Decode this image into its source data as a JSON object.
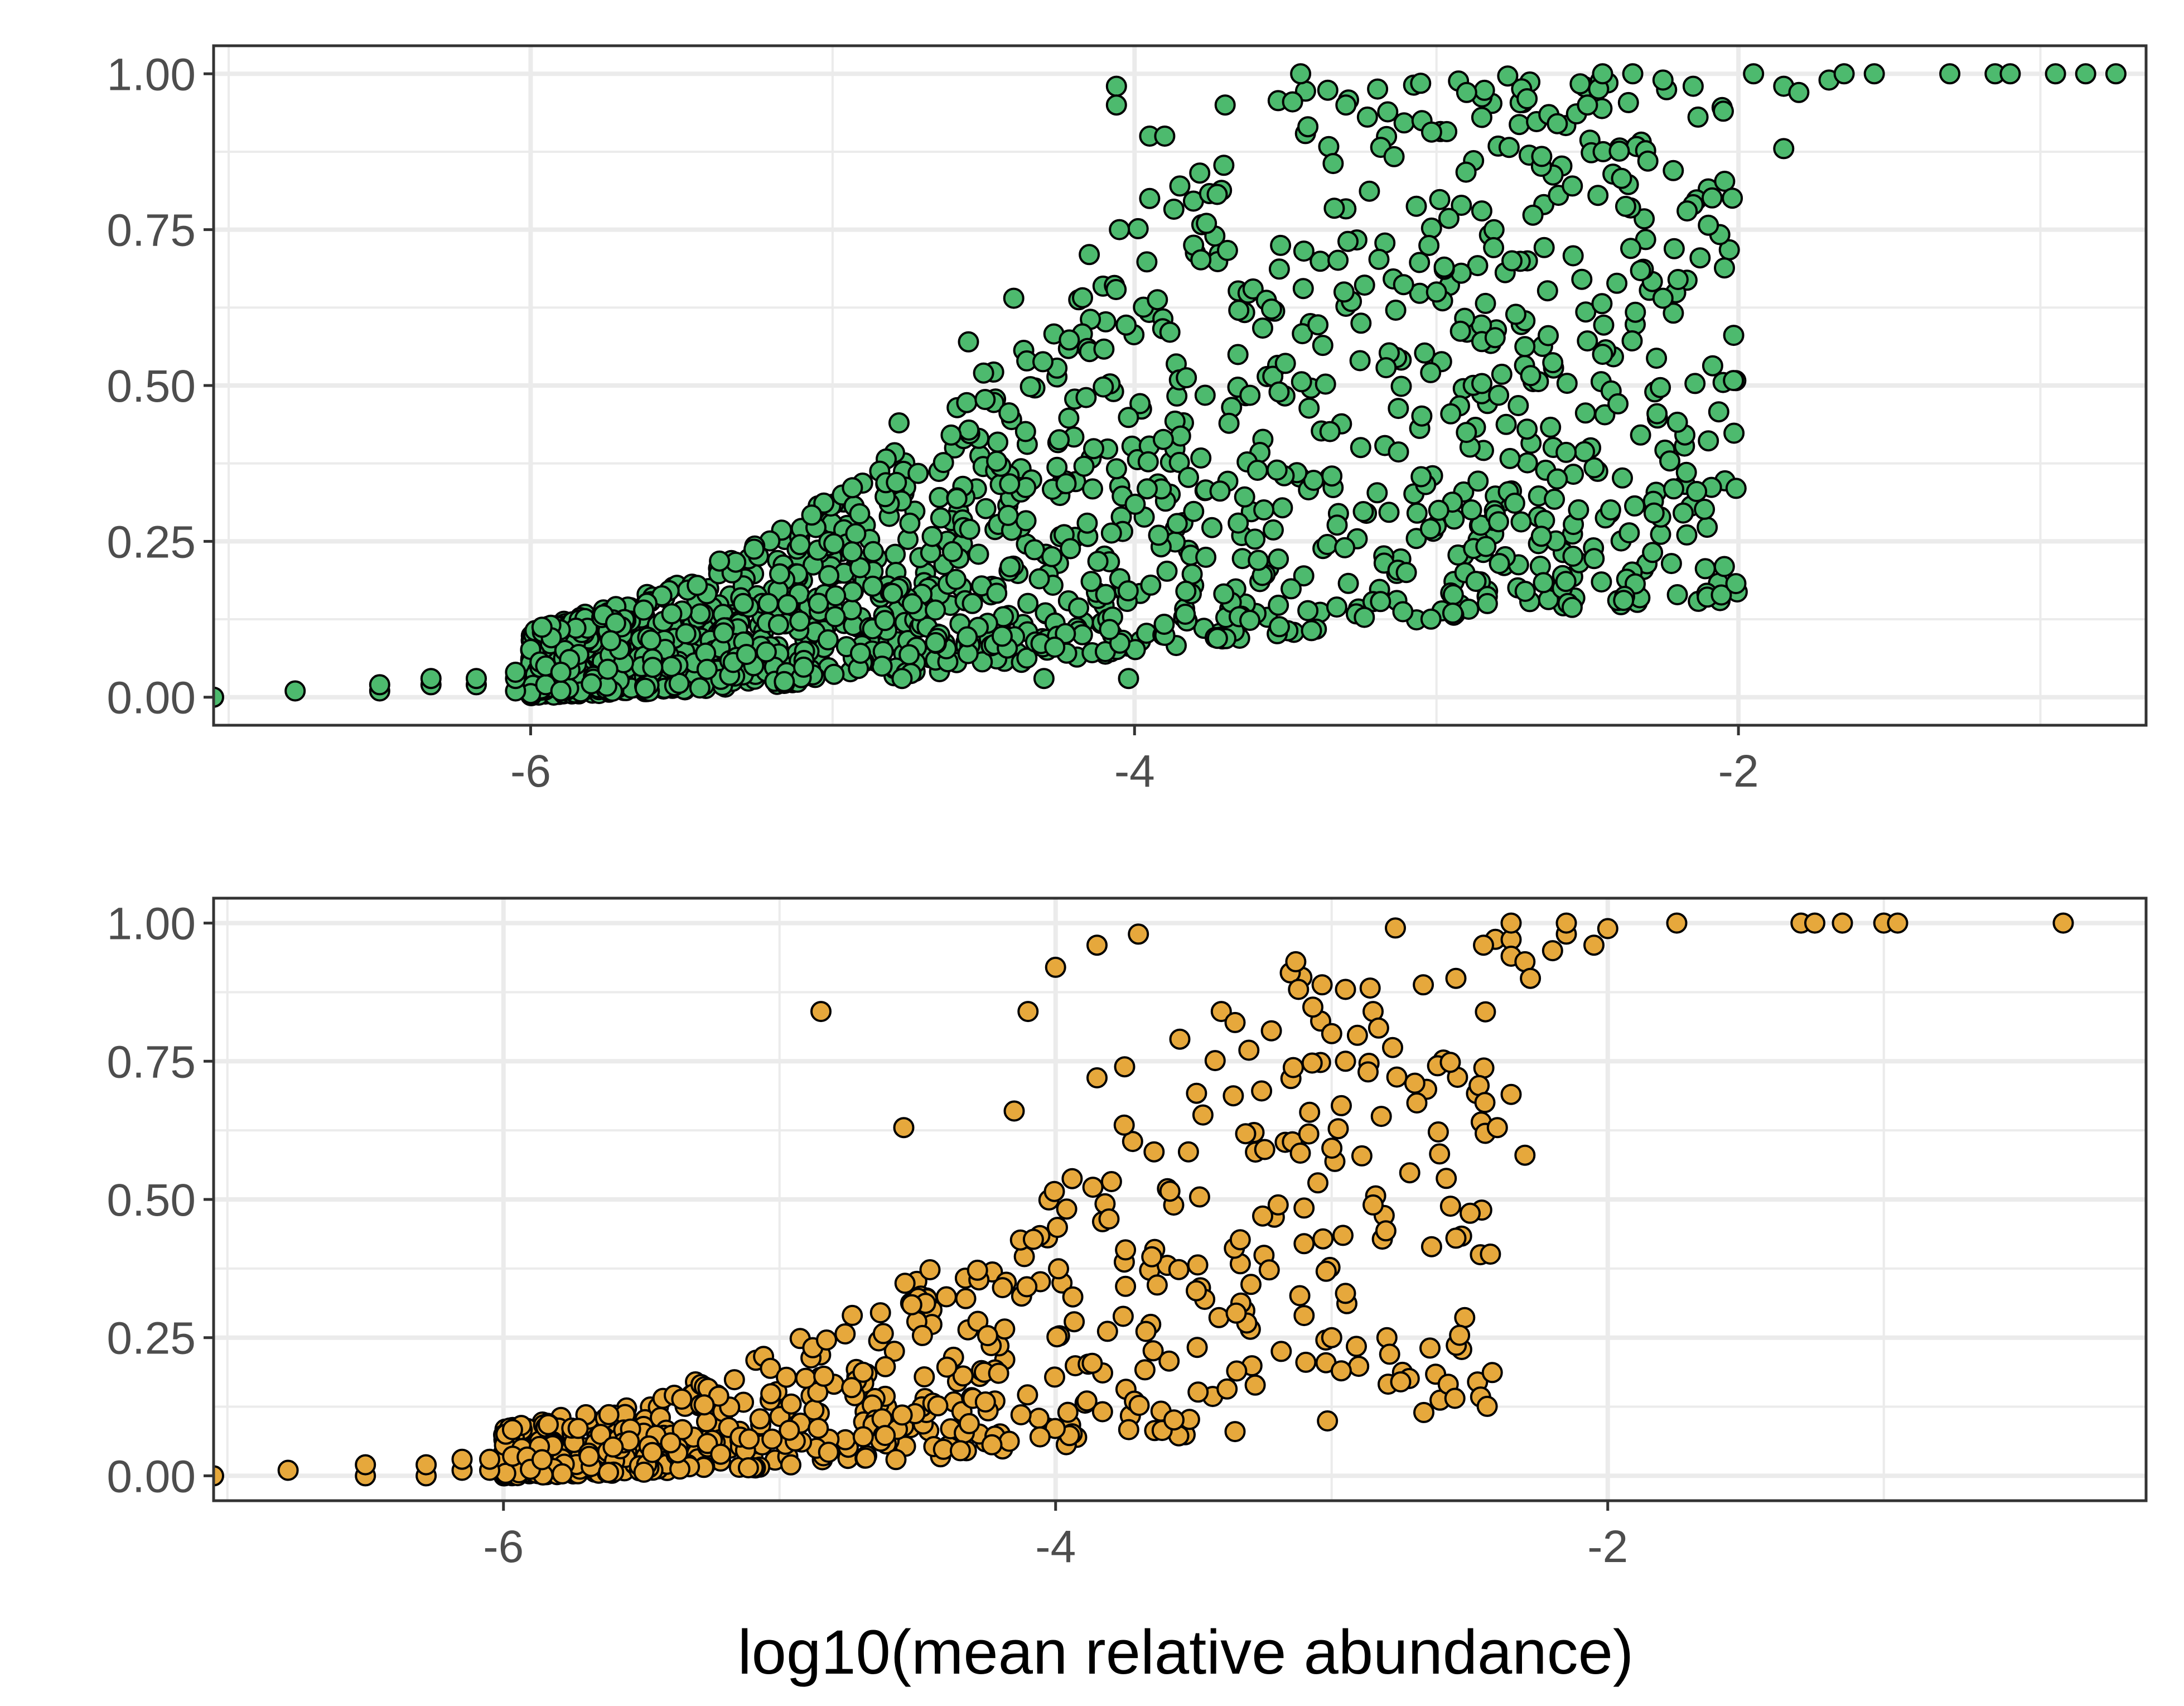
{
  "chart_data": [
    {
      "type": "scatter",
      "panel": "top",
      "marker_color": "#4dba6e",
      "xlabel": "",
      "ylabel": "",
      "xlim": [
        -7.05,
        -0.65
      ],
      "ylim": [
        -0.045,
        1.045
      ],
      "x_ticks": [
        -6,
        -4,
        -2
      ],
      "x_tick_labels": [
        "-6",
        "-4",
        "-2"
      ],
      "y_ticks": [
        0,
        0.25,
        0.5,
        0.75,
        1
      ],
      "y_tick_labels": [
        "0.00",
        "0.25",
        "0.50",
        "0.75",
        "1.00"
      ],
      "grid": true,
      "generated": {
        "count": 1650,
        "seed": 11,
        "x_min": -6.0,
        "x_max": -2.0,
        "x_scale": 0.75,
        "x_power": 1.6,
        "curve_mid": -3.9,
        "curve_steep": 1.25,
        "spread": 0.5,
        "noise_power": 1.4
      },
      "points": [
        [
          -7.05,
          0.0
        ],
        [
          -6.78,
          0.01
        ],
        [
          -6.5,
          0.01
        ],
        [
          -6.5,
          0.02
        ],
        [
          -6.33,
          0.02
        ],
        [
          -6.33,
          0.03
        ],
        [
          -6.18,
          0.02
        ],
        [
          -6.18,
          0.03
        ],
        [
          -6.05,
          0.01
        ],
        [
          -6.05,
          0.03
        ],
        [
          -6.05,
          0.04
        ],
        [
          -5.95,
          0.02
        ],
        [
          -5.95,
          0.05
        ],
        [
          -5.9,
          0.01
        ],
        [
          -5.9,
          0.04
        ],
        [
          -4.77,
          0.03
        ],
        [
          -4.3,
          0.03
        ],
        [
          -4.02,
          0.03
        ],
        [
          -3.83,
          0.17
        ],
        [
          -4.78,
          0.44
        ],
        [
          -4.5,
          0.52
        ],
        [
          -4.55,
          0.57
        ],
        [
          -4.4,
          0.64
        ],
        [
          -4.15,
          0.71
        ],
        [
          -4.05,
          0.75
        ],
        [
          -3.95,
          0.8
        ],
        [
          -3.85,
          0.82
        ],
        [
          -3.7,
          0.95
        ],
        [
          -4.06,
          0.98
        ],
        [
          -4.06,
          0.95
        ],
        [
          -3.95,
          0.9
        ],
        [
          -3.9,
          0.9
        ],
        [
          -3.45,
          1.0
        ],
        [
          -3.3,
          0.95
        ],
        [
          -3.1,
          0.2
        ],
        [
          -3.02,
          0.27
        ],
        [
          -3.25,
          0.6
        ],
        [
          -3.0,
          0.65
        ],
        [
          -2.85,
          0.78
        ],
        [
          -2.75,
          0.7
        ],
        [
          -2.6,
          0.35
        ],
        [
          -2.7,
          0.43
        ],
        [
          -2.63,
          0.58
        ],
        [
          -2.55,
          0.82
        ],
        [
          -2.45,
          0.55
        ],
        [
          -2.3,
          0.86
        ],
        [
          -2.25,
          0.64
        ],
        [
          -2.2,
          0.67
        ],
        [
          -2.15,
          0.79
        ],
        [
          -2.17,
          0.78
        ],
        [
          -2.9,
          0.97
        ],
        [
          -2.85,
          0.93
        ],
        [
          -2.7,
          0.96
        ],
        [
          -2.6,
          0.92
        ],
        [
          -2.5,
          0.95
        ],
        [
          -2.45,
          1.0
        ],
        [
          -2.35,
          1.0
        ],
        [
          -2.25,
          0.99
        ],
        [
          -2.15,
          0.98
        ],
        [
          -2.05,
          0.94
        ],
        [
          -1.95,
          1.0
        ],
        [
          -1.85,
          0.98
        ],
        [
          -1.8,
          0.97
        ],
        [
          -1.7,
          0.99
        ],
        [
          -1.85,
          0.88
        ],
        [
          -1.65,
          1.0
        ],
        [
          -1.55,
          1.0
        ],
        [
          -1.3,
          1.0
        ],
        [
          -1.15,
          1.0
        ],
        [
          -1.1,
          1.0
        ],
        [
          -0.95,
          1.0
        ],
        [
          -0.85,
          1.0
        ],
        [
          -0.75,
          1.0
        ]
      ]
    },
    {
      "type": "scatter",
      "panel": "bottom",
      "marker_color": "#e6a83c",
      "xlabel": "log10(mean relative abundance)",
      "ylabel": "",
      "xlim": [
        -7.05,
        -0.05
      ],
      "ylim": [
        -0.045,
        1.045
      ],
      "x_ticks": [
        -6,
        -4,
        -2
      ],
      "x_tick_labels": [
        "-6",
        "-4",
        "-2"
      ],
      "y_ticks": [
        0,
        0.25,
        0.5,
        0.75,
        1
      ],
      "y_tick_labels": [
        "0.00",
        "0.25",
        "0.50",
        "0.75",
        "1.00"
      ],
      "grid": true,
      "generated": {
        "count": 720,
        "seed": 29,
        "x_min": -6.0,
        "x_max": -2.4,
        "x_scale": 0.8,
        "x_power": 1.9,
        "curve_mid": -3.4,
        "curve_steep": 1.1,
        "spread": 0.48,
        "noise_power": 1.5
      },
      "points": [
        [
          -7.05,
          0.0
        ],
        [
          -6.78,
          0.01
        ],
        [
          -6.5,
          0.0
        ],
        [
          -6.5,
          0.02
        ],
        [
          -6.28,
          0.0
        ],
        [
          -6.28,
          0.02
        ],
        [
          -6.15,
          0.01
        ],
        [
          -6.15,
          0.03
        ],
        [
          -6.05,
          0.01
        ],
        [
          -6.05,
          0.03
        ],
        [
          -4.85,
          0.84
        ],
        [
          -4.1,
          0.84
        ],
        [
          -4.0,
          0.92
        ],
        [
          -3.85,
          0.96
        ],
        [
          -3.7,
          0.98
        ],
        [
          -4.55,
          0.63
        ],
        [
          -4.15,
          0.66
        ],
        [
          -3.85,
          0.72
        ],
        [
          -3.75,
          0.74
        ],
        [
          -3.55,
          0.79
        ],
        [
          -3.4,
          0.84
        ],
        [
          -3.35,
          0.82
        ],
        [
          -3.3,
          0.77
        ],
        [
          -3.15,
          0.91
        ],
        [
          -3.13,
          0.93
        ],
        [
          -3.12,
          0.88
        ],
        [
          -3.0,
          0.8
        ],
        [
          -2.95,
          0.88
        ],
        [
          -2.85,
          0.84
        ],
        [
          -2.83,
          0.81
        ],
        [
          -2.95,
          0.75
        ],
        [
          -3.25,
          0.47
        ],
        [
          -3.1,
          0.42
        ],
        [
          -3.05,
          0.53
        ],
        [
          -2.85,
          0.49
        ],
        [
          -3.02,
          0.37
        ],
        [
          -2.95,
          0.33
        ],
        [
          -3.1,
          0.29
        ],
        [
          -3.0,
          0.25
        ],
        [
          -2.8,
          0.25
        ],
        [
          -2.79,
          0.22
        ],
        [
          -2.75,
          0.17
        ],
        [
          -3.35,
          0.08
        ],
        [
          -2.55,
          0.43
        ],
        [
          -2.55,
          0.9
        ],
        [
          -2.4,
          0.63
        ],
        [
          -2.35,
          0.69
        ],
        [
          -2.3,
          0.58
        ],
        [
          -2.45,
          0.96
        ],
        [
          -2.35,
          0.97
        ],
        [
          -2.35,
          0.94
        ],
        [
          -2.3,
          0.93
        ],
        [
          -2.28,
          0.9
        ],
        [
          -2.2,
          0.95
        ],
        [
          -2.15,
          0.98
        ],
        [
          -2.0,
          0.99
        ],
        [
          -2.05,
          0.96
        ],
        [
          -2.35,
          1.0
        ],
        [
          -2.15,
          1.0
        ],
        [
          -1.75,
          1.0
        ],
        [
          -1.3,
          1.0
        ],
        [
          -1.25,
          1.0
        ],
        [
          -1.15,
          1.0
        ],
        [
          -1.0,
          1.0
        ],
        [
          -0.95,
          1.0
        ],
        [
          -0.35,
          1.0
        ]
      ]
    }
  ]
}
